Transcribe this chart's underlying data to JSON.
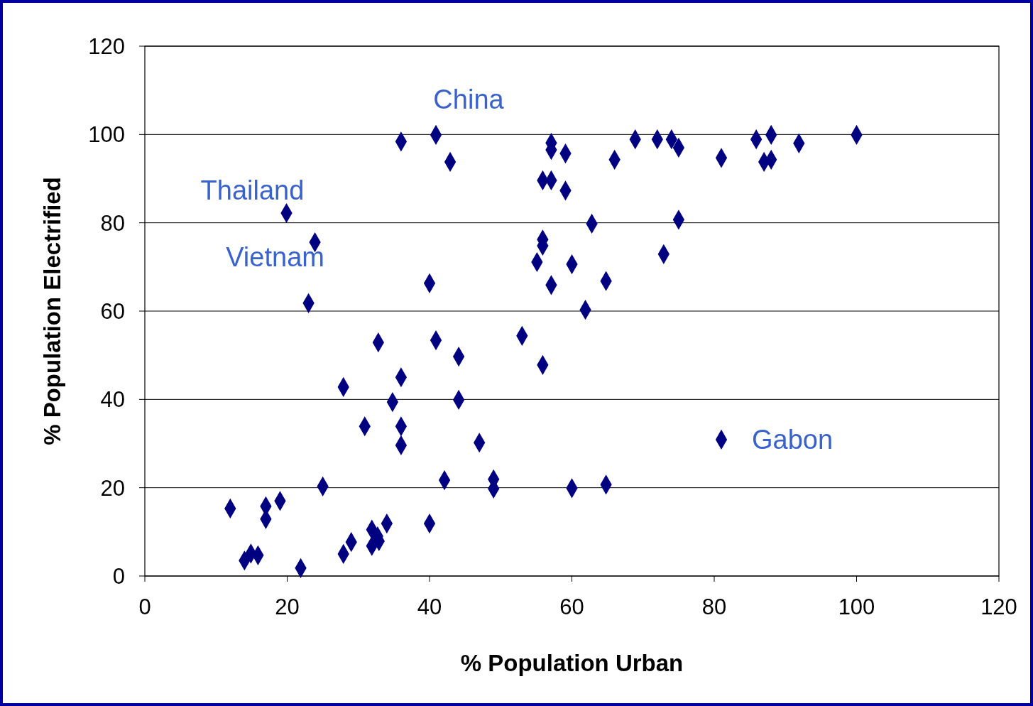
{
  "chart_data": {
    "type": "scatter",
    "xlabel": "% Population Urban",
    "ylabel": "% Population Electrified",
    "xlim": [
      0,
      120
    ],
    "xticks": [
      0,
      20,
      40,
      60,
      80,
      100,
      120
    ],
    "ylim": [
      0,
      120
    ],
    "yticks": [
      0,
      20,
      40,
      60,
      80,
      100,
      120
    ],
    "grid": "y",
    "marker": "diamond",
    "annotations": [
      {
        "text": "China",
        "x": 40.9,
        "y": 99.9
      },
      {
        "text": "Thailand",
        "x": 19.9,
        "y": 82.2
      },
      {
        "text": "Vietnam",
        "x": 23,
        "y": 61.8
      },
      {
        "text": "Gabon",
        "x": 81,
        "y": 30.9
      }
    ],
    "series": [
      {
        "color": "#000080",
        "x": [
          12,
          14,
          14.9,
          15.9,
          17,
          17,
          19,
          19.9,
          21.9,
          23,
          23.9,
          25,
          27.9,
          27.9,
          29,
          30.9,
          31.9,
          31.9,
          32.8,
          32.7,
          32.9,
          34,
          34.8,
          36,
          36,
          36,
          36,
          40,
          40,
          40.9,
          40.9,
          42.1,
          42.9,
          44.1,
          44.1,
          47,
          49,
          49,
          53,
          55.1,
          55.9,
          55.9,
          55.9,
          55.9,
          57.1,
          57.1,
          57.1,
          57.1,
          59.1,
          59.1,
          60,
          60,
          61.9,
          62.8,
          64.8,
          64.8,
          66,
          68.9,
          72,
          72.9,
          74,
          75,
          75,
          81,
          81,
          85.9,
          87,
          88,
          88,
          91.9,
          100
        ],
        "values": [
          15.3,
          3.5,
          5.1,
          4.7,
          15.8,
          12.9,
          17,
          82.2,
          1.8,
          61.8,
          75.6,
          20.3,
          42.8,
          5,
          7.7,
          33.9,
          10.5,
          6.8,
          52.9,
          9,
          7.9,
          11.9,
          39.4,
          98.4,
          45,
          33.9,
          29.6,
          66.3,
          11.9,
          99.9,
          53.4,
          21.7,
          93.8,
          49.7,
          39.9,
          30.2,
          21.9,
          19.8,
          54.4,
          71.1,
          89.6,
          76.2,
          74.8,
          47.8,
          98.1,
          96.5,
          89.6,
          65.9,
          95.7,
          87.3,
          70.6,
          19.9,
          60.3,
          79.8,
          66.8,
          20.7,
          94.3,
          98.9,
          98.9,
          72.9,
          98.9,
          97,
          80.7,
          94.7,
          30.9,
          98.9,
          93.8,
          99.9,
          94.3,
          98,
          99.9
        ]
      }
    ]
  }
}
